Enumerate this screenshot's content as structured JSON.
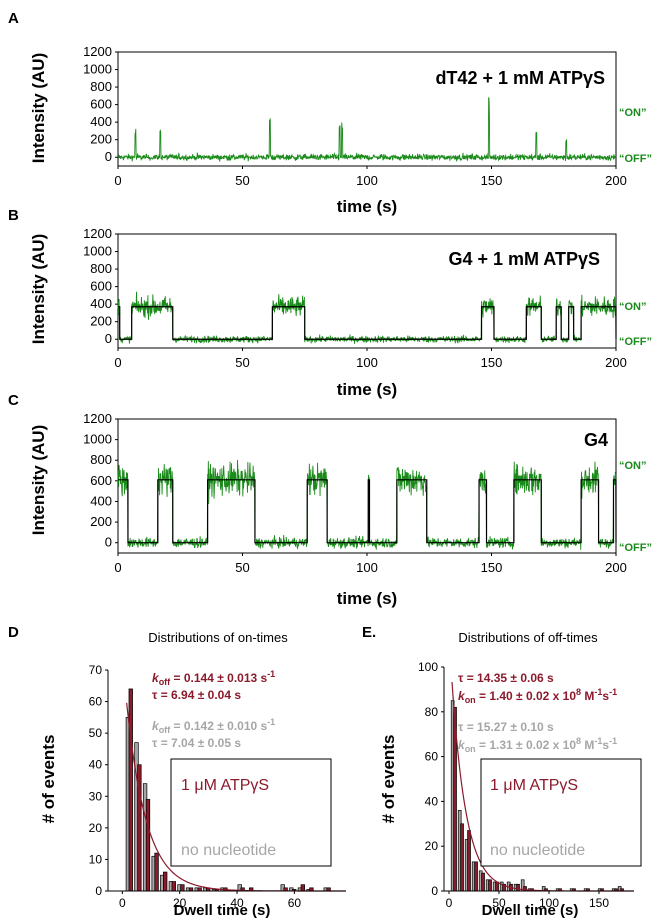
{
  "colors": {
    "green": "#1a8a1a",
    "darkred": "#8b1a2b",
    "gray": "#a6a6a6",
    "black": "#000000"
  },
  "panels": [
    {
      "letter": "A",
      "title": "dT42 + 1 mM ATPγS",
      "ylabel": "Intensity (AU)",
      "xlabel": "time (s)",
      "on_label": "“ON”",
      "off_label": "“OFF”"
    },
    {
      "letter": "B",
      "title": "G4 + 1 mM ATPγS",
      "ylabel": "Intensity (AU)",
      "xlabel": "time (s)",
      "on_label": "“ON”",
      "off_label": "“OFF”"
    },
    {
      "letter": "C",
      "title": "G4",
      "ylabel": "Intensity (AU)",
      "xlabel": "time (s)",
      "on_label": "“ON”",
      "off_label": "“OFF”"
    },
    {
      "letter": "D",
      "title": "Distributions of on-times",
      "ylabel": "# of events",
      "xlabel": "Dwell time (s)",
      "ann_red_1_a": "k",
      "ann_red_1_sub": "off",
      "ann_red_1_b": " = 0.144 ± 0.013 s",
      "ann_red_1_sup": "-1",
      "ann_red_2": "τ = 6.94 ± 0.04 s",
      "ann_gray_1_a": "k",
      "ann_gray_1_sub": "off",
      "ann_gray_1_b": " = 0.142 ± 0.010 s",
      "ann_gray_1_sup": "-1",
      "ann_gray_2": "τ = 7.04 ± 0.05 s",
      "legend_1": "1 μM ATPγS",
      "legend_2": "no nucleotide"
    },
    {
      "letter": "E.",
      "title": "Distributions of off-times",
      "ylabel": "# of events",
      "xlabel": "Dwell time (s)",
      "ann_red_1": "τ = 14.35 ± 0.06 s",
      "ann_red_2_a": "k",
      "ann_red_2_sub": "on",
      "ann_red_2_b": " = 1.40 ± 0.02 x 10",
      "ann_red_2_sup1": "8",
      "ann_red_2_c": " M",
      "ann_red_2_sup2": "-1",
      "ann_red_2_d": "s",
      "ann_red_2_sup3": "-1",
      "ann_gray_1": "τ = 15.27 ± 0.10 s",
      "ann_gray_2_a": "k",
      "ann_gray_2_sub": "on",
      "ann_gray_2_b": " = 1.31 ± 0.02 x 10",
      "ann_gray_2_sup1": "8",
      "ann_gray_2_c": " M",
      "ann_gray_2_sup2": "-1",
      "ann_gray_2_d": "s",
      "ann_gray_2_sup3": "-1",
      "legend_1": "1 μM ATPγS",
      "legend_2": "no nucleotide"
    }
  ],
  "chart_data": [
    {
      "type": "line",
      "panel": "A",
      "xlim": [
        0,
        200
      ],
      "ylim": [
        -100,
        1200
      ],
      "xticks": [
        0,
        50,
        100,
        150,
        200
      ],
      "yticks": [
        0,
        200,
        400,
        600,
        800,
        1000,
        1200
      ],
      "baseline": 0,
      "noise": 25,
      "spikes": [
        [
          7,
          330
        ],
        [
          17,
          350
        ],
        [
          61,
          530
        ],
        [
          89,
          380
        ],
        [
          90,
          420
        ],
        [
          149,
          700
        ],
        [
          168,
          380
        ],
        [
          180,
          230
        ]
      ]
    },
    {
      "type": "line",
      "panel": "B",
      "xlim": [
        0,
        200
      ],
      "ylim": [
        -100,
        1200
      ],
      "xticks": [
        0,
        50,
        100,
        150,
        200
      ],
      "yticks": [
        0,
        200,
        400,
        600,
        800,
        1000,
        1200
      ],
      "high": 370,
      "low": 0,
      "noise": 60,
      "on_intervals": [
        [
          0,
          0.7
        ],
        [
          5.5,
          22
        ],
        [
          62,
          75
        ],
        [
          146,
          151
        ],
        [
          164,
          170
        ],
        [
          176,
          178
        ],
        [
          181,
          183
        ],
        [
          186,
          200
        ]
      ]
    },
    {
      "type": "line",
      "panel": "C",
      "xlim": [
        0,
        200
      ],
      "ylim": [
        -100,
        1200
      ],
      "xticks": [
        0,
        50,
        100,
        150,
        200
      ],
      "yticks": [
        0,
        200,
        400,
        600,
        800,
        1000,
        1200
      ],
      "high": 610,
      "low": 0,
      "noise": 80,
      "on_intervals": [
        [
          0,
          4
        ],
        [
          16,
          22
        ],
        [
          36,
          55
        ],
        [
          76,
          84
        ],
        [
          100.5,
          101
        ],
        [
          112,
          124
        ],
        [
          145,
          148
        ],
        [
          159,
          170
        ],
        [
          186,
          193
        ],
        [
          199,
          200
        ]
      ]
    },
    {
      "type": "bar",
      "panel": "D",
      "xlim": [
        -5,
        78
      ],
      "ylim": [
        0,
        70
      ],
      "xticks": [
        0,
        20,
        40,
        60
      ],
      "yticks": [
        0,
        10,
        20,
        30,
        40,
        50,
        60,
        70
      ],
      "bin_centers": [
        2.5,
        5.5,
        8.5,
        11.5,
        14.5,
        17.5,
        20.5,
        23.5,
        26.5,
        29.5,
        32.5,
        35.5,
        41.5,
        44.5,
        56.5,
        59.5,
        62.5,
        65.5,
        71.5
      ],
      "series": [
        {
          "name": "no nucleotide",
          "values": [
            55,
            47,
            34,
            11,
            5,
            3,
            2,
            1,
            1,
            1,
            0.5,
            1,
            2,
            0,
            2,
            1,
            1,
            0.5,
            1
          ]
        },
        {
          "name": "1 μM ATPγS",
          "values": [
            64,
            40,
            29,
            12,
            6,
            3,
            2,
            1,
            1,
            1,
            0.5,
            1,
            1,
            1,
            1,
            0.5,
            2,
            1,
            1
          ]
        }
      ],
      "fit_k": 0.144,
      "fit_amp": 74
    },
    {
      "type": "bar",
      "panel": "E",
      "xlim": [
        -5,
        185
      ],
      "ylim": [
        0,
        100
      ],
      "xticks": [
        0,
        50,
        100,
        150
      ],
      "yticks": [
        0,
        20,
        40,
        60,
        80,
        100
      ],
      "bin_centers": [
        5,
        12,
        19,
        26,
        33,
        40,
        47,
        54,
        61,
        68,
        75,
        82,
        96,
        110,
        124,
        138,
        152,
        166,
        172
      ],
      "series": [
        {
          "name": "no nucleotide",
          "values": [
            85,
            36,
            23,
            13,
            9,
            5,
            4,
            4,
            4,
            3,
            5,
            1,
            2,
            1,
            1,
            1,
            1,
            1,
            2
          ]
        },
        {
          "name": "1 μM ATPγS",
          "values": [
            82,
            30,
            27,
            13,
            8,
            5,
            4,
            3,
            3,
            3,
            2,
            1,
            1,
            1,
            1,
            1,
            1,
            1,
            1
          ]
        }
      ],
      "fit_tau": 14.35,
      "fit_amp": 115
    }
  ]
}
